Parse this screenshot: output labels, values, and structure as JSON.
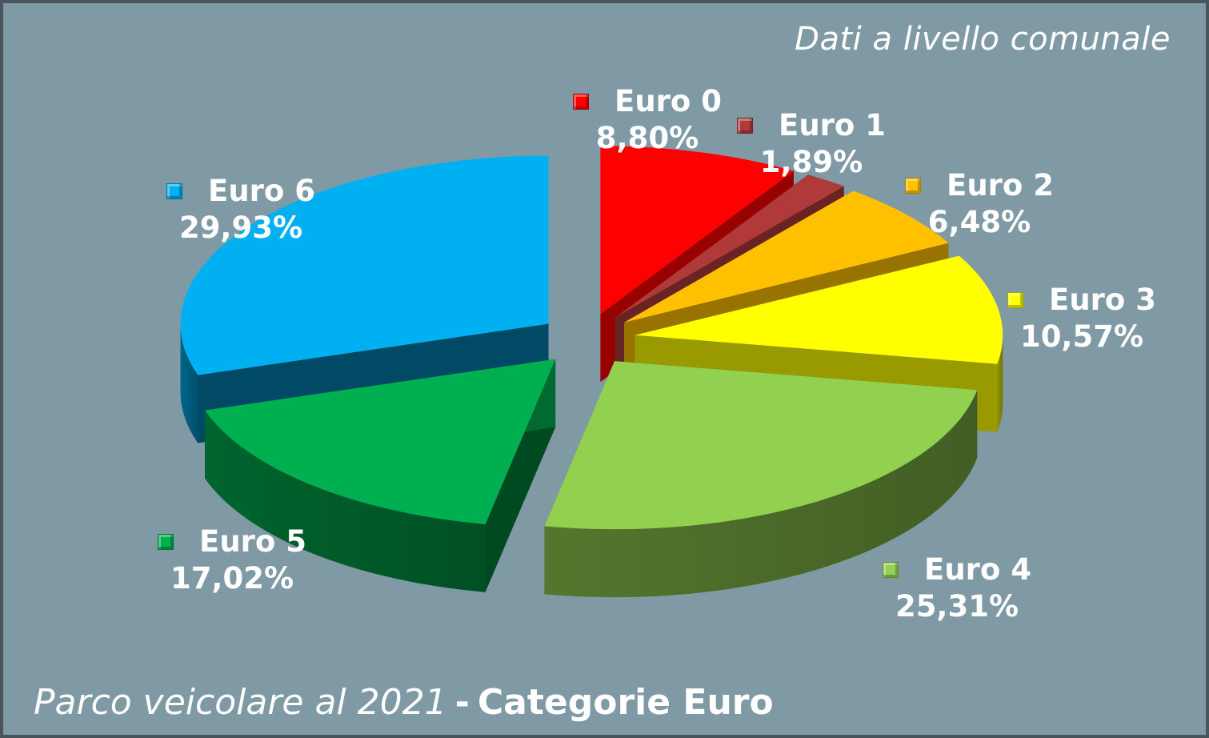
{
  "subtitle": "Dati a livello comunale",
  "footer": {
    "italic_part": "Parco veicolare al 2021",
    "separator": "-",
    "bold_part": "Categorie Euro"
  },
  "chart_data": {
    "type": "pie",
    "title": "Parco veicolare al 2021 - Categorie Euro",
    "subtitle": "Dati a livello comunale",
    "categories": [
      "Euro 0",
      "Euro 1",
      "Euro 2",
      "Euro 3",
      "Euro 4",
      "Euro 5",
      "Euro 6"
    ],
    "values": [
      8.8,
      1.89,
      6.48,
      10.57,
      25.31,
      17.02,
      29.93
    ],
    "value_labels": [
      "8,80%",
      "1,89%",
      "6,48%",
      "10,57%",
      "25,31%",
      "17,02%",
      "29,93%"
    ],
    "colors": [
      "#ff0000",
      "#b03a3a",
      "#ffc000",
      "#ffff00",
      "#92d050",
      "#00b050",
      "#00b0f0"
    ],
    "style": "3d-exploded",
    "legend": "labels-beside-slices"
  }
}
